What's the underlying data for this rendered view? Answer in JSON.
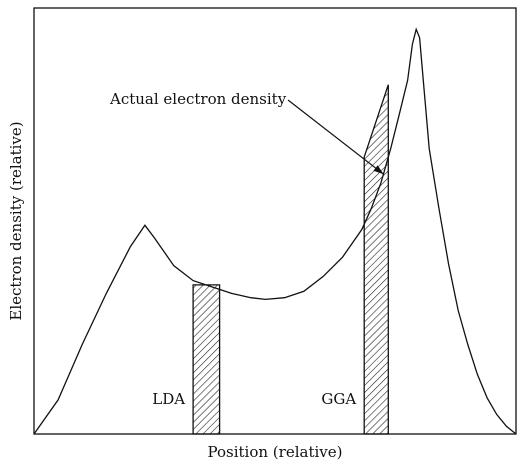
{
  "chart_data": {
    "type": "line",
    "title": "",
    "xlabel": "Position (relative)",
    "ylabel": "Electron density (relative)",
    "xlim": [
      0,
      100
    ],
    "ylim": [
      0,
      100
    ],
    "grid": false,
    "ticks": false,
    "series": [
      {
        "name": "",
        "x": [
          0,
          5,
          10,
          15,
          20,
          23,
          25,
          29,
          33,
          37,
          41,
          45,
          48,
          52,
          56,
          60,
          64,
          68,
          70,
          72,
          74,
          76,
          77.5,
          78.5,
          79.3,
          80,
          81,
          82,
          84,
          86,
          88,
          90,
          92,
          94,
          96,
          98,
          100
        ],
        "y": [
          0,
          8,
          21,
          33,
          44,
          49,
          46,
          39.5,
          36,
          34.5,
          33,
          32,
          31.6,
          32,
          33.5,
          37,
          41.5,
          48,
          53,
          59,
          67,
          76,
          83,
          91.5,
          95,
          93,
          80,
          67,
          53,
          40,
          29,
          21,
          14,
          8.5,
          4.6,
          1.8,
          0
        ]
      }
    ],
    "annotations": [
      {
        "text": "Actual electron density",
        "points_to": {
          "x": 72.5,
          "y": 61
        }
      }
    ],
    "bars": [
      {
        "label": "LDA",
        "x_start": 33,
        "x_end": 38.5,
        "height": 35
      },
      {
        "label": "GGA",
        "x_start": 68.5,
        "x_end": 73.5,
        "height_left": 65,
        "height_right": 82
      }
    ]
  },
  "colors": {
    "line": "#111111",
    "hatch": "#222222",
    "background": "#ffffff"
  }
}
